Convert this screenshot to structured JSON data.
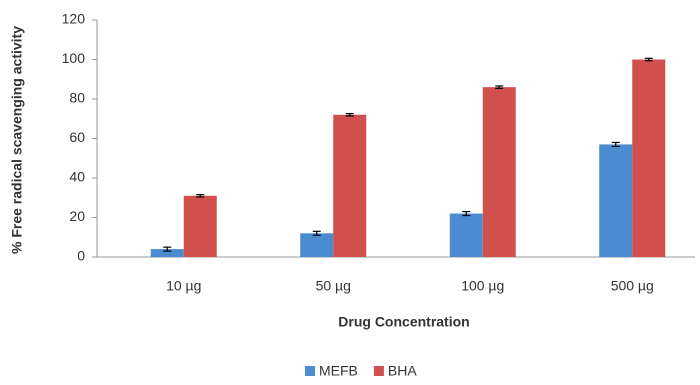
{
  "chart_data": {
    "type": "bar",
    "x_label": "Drug Concentration",
    "y_label": "% Free radical scavenging activity",
    "categories": [
      "10 µg",
      "50 µg",
      "100 µg",
      "500 µg"
    ],
    "series": [
      {
        "name": "MEFB",
        "color": "#4a8ccf",
        "values": [
          4,
          12,
          22,
          57
        ],
        "errors": [
          1,
          1,
          1,
          1
        ]
      },
      {
        "name": "BHA",
        "color": "#d0504d",
        "values": [
          31,
          72,
          86,
          100
        ],
        "errors": [
          0.6,
          0.6,
          0.6,
          0.6
        ]
      }
    ],
    "ylim": [
      0,
      120
    ],
    "yticks": [
      0,
      20,
      40,
      60,
      80,
      100,
      120
    ],
    "grid": false,
    "legend": "bottom"
  }
}
